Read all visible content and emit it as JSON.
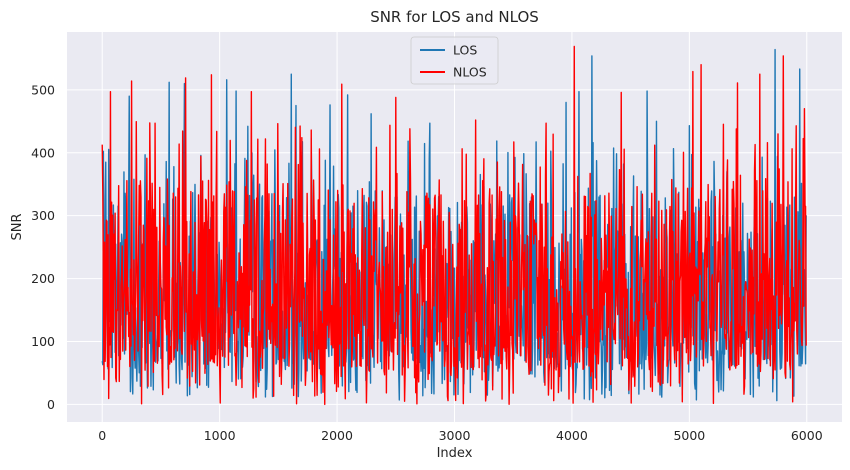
{
  "chart_data": {
    "type": "line",
    "title": "SNR for LOS and NLOS",
    "xlabel": "Index",
    "ylabel": "SNR",
    "xlim": [
      -300,
      6300
    ],
    "ylim": [
      -28,
      592
    ],
    "xticks": [
      0,
      1000,
      2000,
      3000,
      4000,
      5000,
      6000
    ],
    "yticks": [
      0,
      100,
      200,
      300,
      400,
      500
    ],
    "grid": true,
    "legend_position": "top-center",
    "background_color": "#eaeaf2",
    "n_points": 6000,
    "series": [
      {
        "name": "LOS",
        "color": "#1f77b4",
        "typical_range": [
          5,
          340
        ],
        "peaks": [
          {
            "x": 30,
            "y": 385
          },
          {
            "x": 230,
            "y": 490
          },
          {
            "x": 570,
            "y": 512
          },
          {
            "x": 700,
            "y": 510
          },
          {
            "x": 1060,
            "y": 516
          },
          {
            "x": 1140,
            "y": 498
          },
          {
            "x": 1240,
            "y": 442
          },
          {
            "x": 1610,
            "y": 525
          },
          {
            "x": 1650,
            "y": 475
          },
          {
            "x": 1940,
            "y": 476
          },
          {
            "x": 2090,
            "y": 492
          },
          {
            "x": 2290,
            "y": 462
          },
          {
            "x": 2790,
            "y": 447
          },
          {
            "x": 3950,
            "y": 480
          },
          {
            "x": 4060,
            "y": 497
          },
          {
            "x": 4170,
            "y": 554
          },
          {
            "x": 4640,
            "y": 498
          },
          {
            "x": 4720,
            "y": 450
          },
          {
            "x": 5000,
            "y": 443
          },
          {
            "x": 5730,
            "y": 564
          },
          {
            "x": 5940,
            "y": 533
          }
        ]
      },
      {
        "name": "NLOS",
        "color": "#ff0000",
        "typical_range": [
          0,
          360
        ],
        "peaks": [
          {
            "x": 70,
            "y": 497
          },
          {
            "x": 250,
            "y": 514
          },
          {
            "x": 450,
            "y": 447
          },
          {
            "x": 710,
            "y": 519
          },
          {
            "x": 930,
            "y": 524
          },
          {
            "x": 1270,
            "y": 497
          },
          {
            "x": 1390,
            "y": 422
          },
          {
            "x": 1780,
            "y": 436
          },
          {
            "x": 2040,
            "y": 509
          },
          {
            "x": 2500,
            "y": 488
          },
          {
            "x": 2620,
            "y": 438
          },
          {
            "x": 3180,
            "y": 452
          },
          {
            "x": 3780,
            "y": 447
          },
          {
            "x": 4020,
            "y": 569
          },
          {
            "x": 4420,
            "y": 496
          },
          {
            "x": 5030,
            "y": 529
          },
          {
            "x": 5100,
            "y": 540
          },
          {
            "x": 5410,
            "y": 511
          },
          {
            "x": 5600,
            "y": 525
          },
          {
            "x": 5800,
            "y": 554
          },
          {
            "x": 5980,
            "y": 470
          }
        ]
      }
    ]
  }
}
